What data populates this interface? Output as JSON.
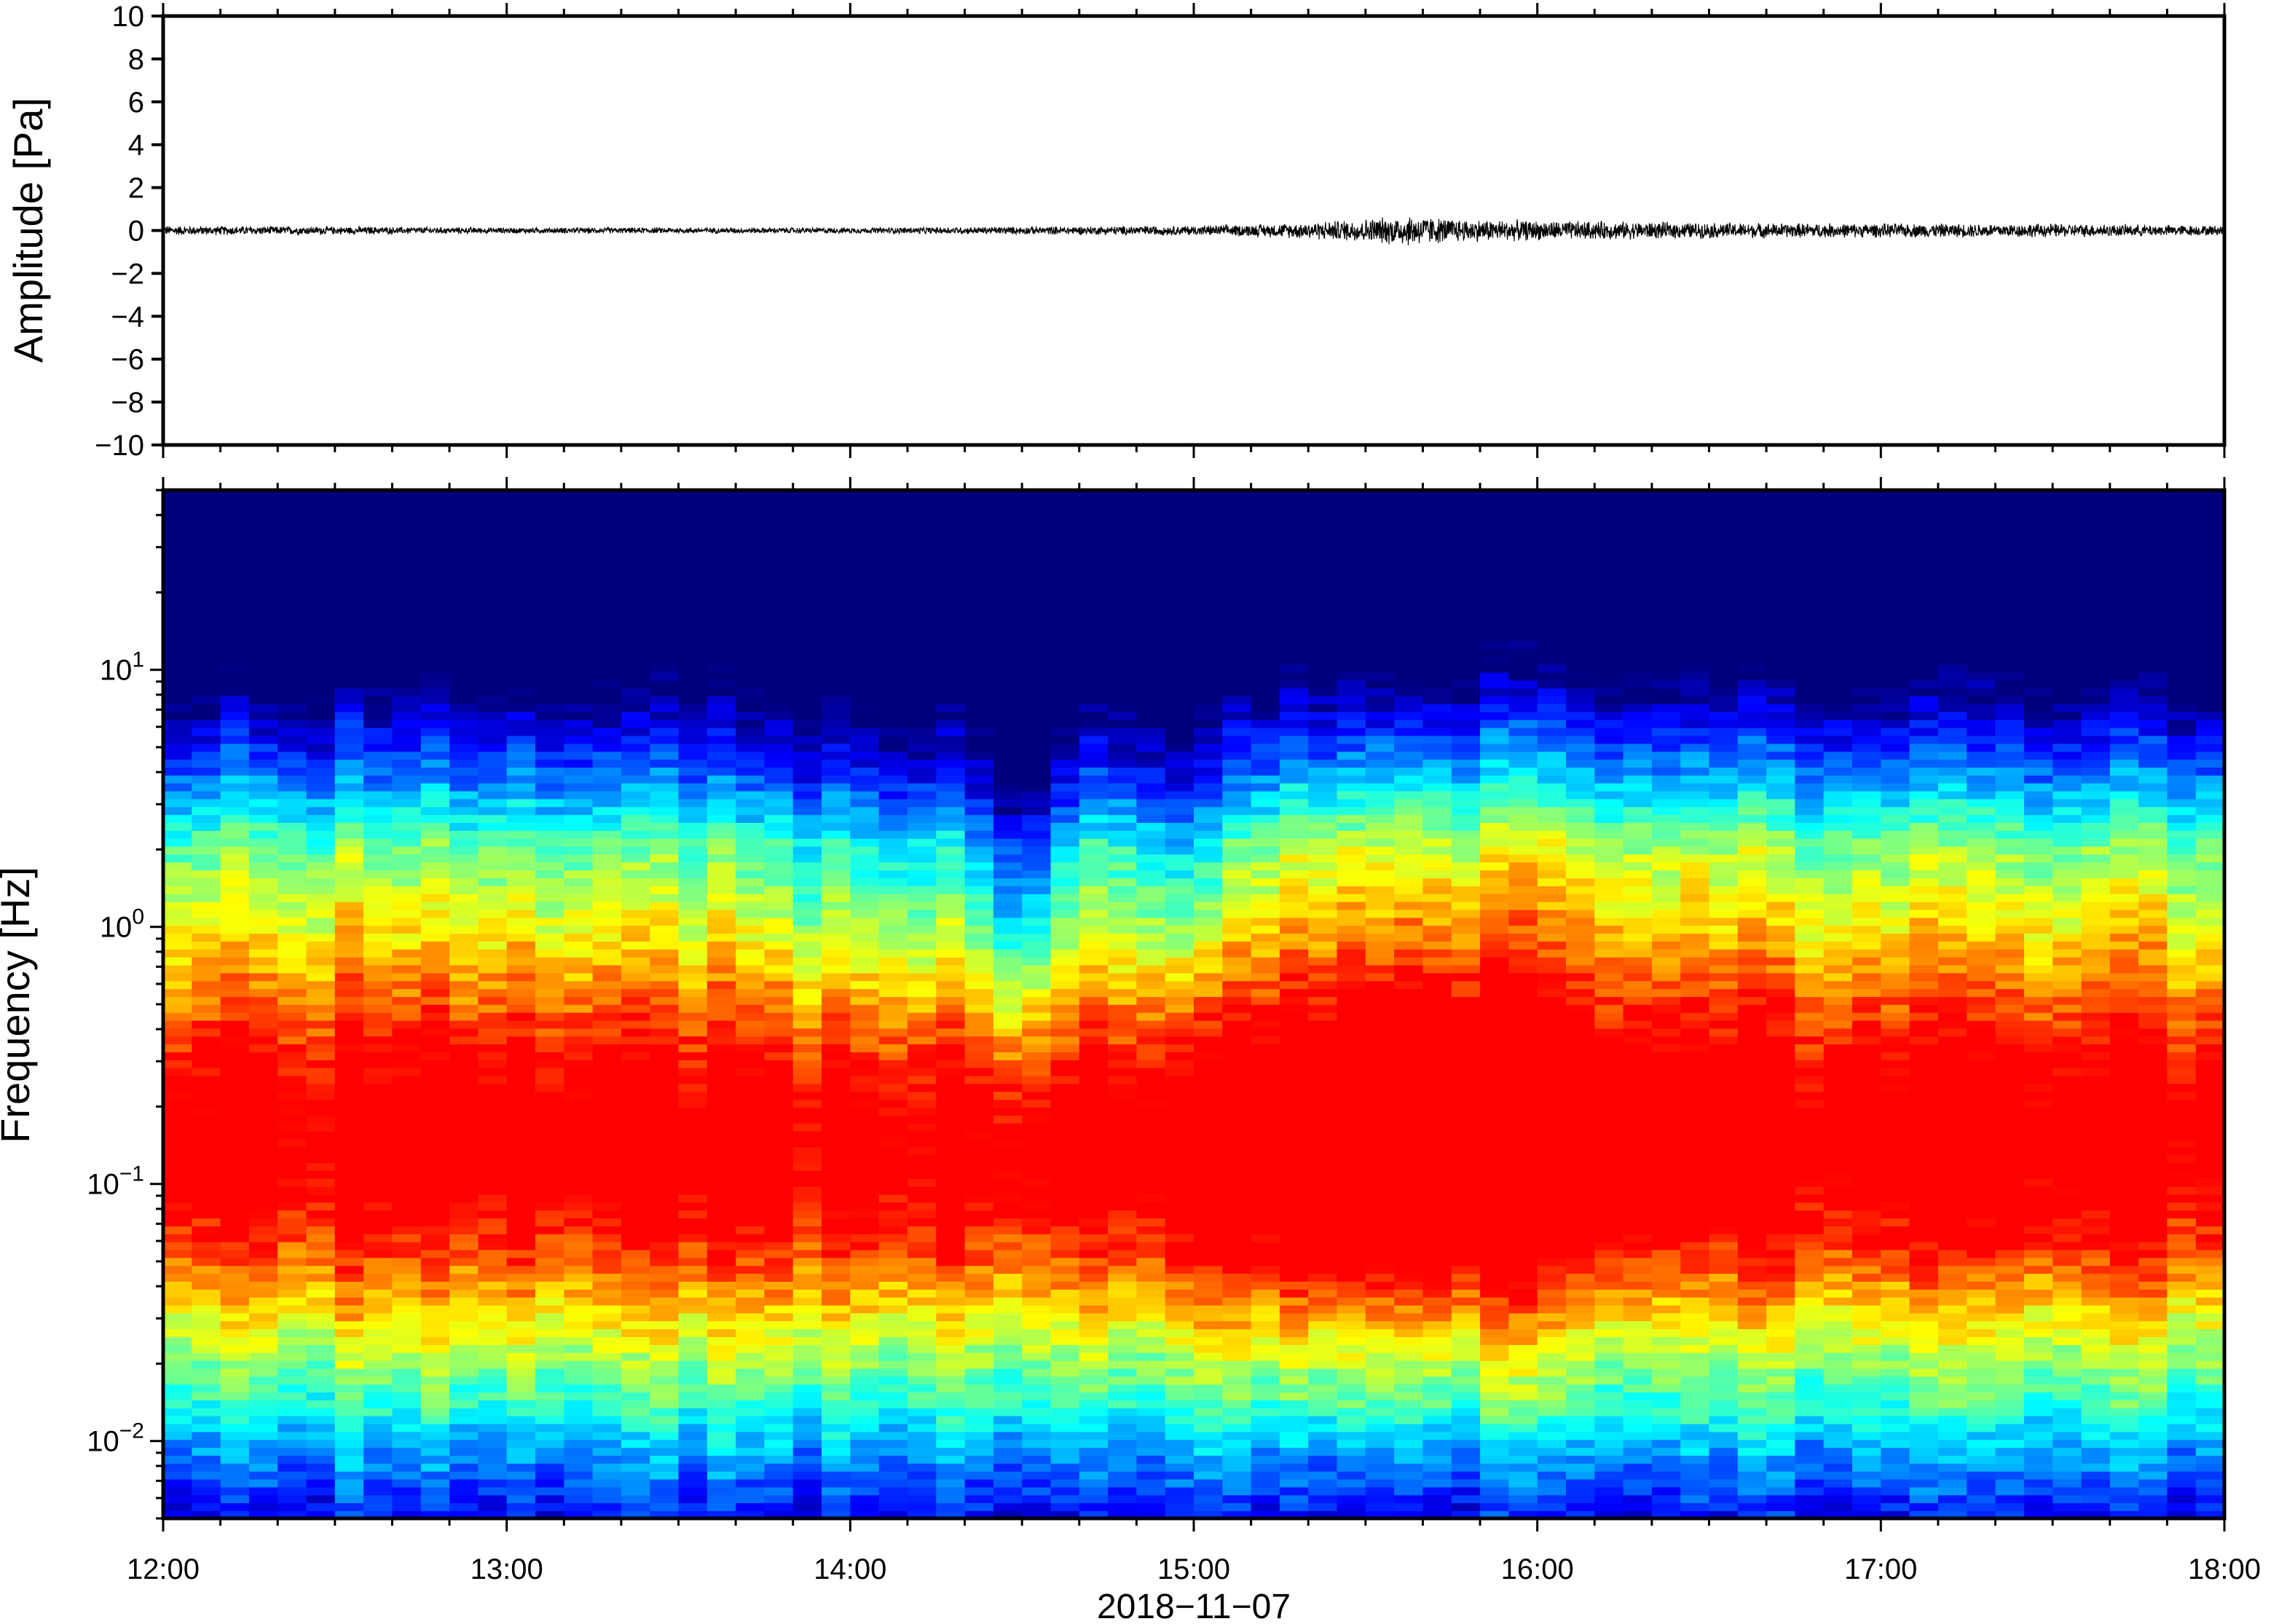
{
  "chart_data": [
    {
      "type": "line",
      "panel": "waveform",
      "ylabel": "Amplitude [Pa]",
      "xlabel": "",
      "x_range": [
        "12:00",
        "18:00"
      ],
      "ylim": [
        -10,
        10
      ],
      "y_ticks": [
        10,
        8,
        6,
        4,
        2,
        0,
        -2,
        -4,
        -6,
        -8,
        -10
      ],
      "y_tick_labels": [
        "10",
        "8",
        "6",
        "4",
        "2",
        "0",
        "−2",
        "−4",
        "−6",
        "−8",
        "−10"
      ],
      "series": [
        {
          "x": [
            "12:00",
            "12:30",
            "13:00",
            "13:30",
            "14:00",
            "14:30",
            "15:00",
            "15:15",
            "15:30",
            "15:38",
            "15:45",
            "16:00",
            "16:30",
            "17:00",
            "17:30",
            "18:00"
          ],
          "envelope_pa": [
            0.25,
            0.2,
            0.15,
            0.15,
            0.15,
            0.2,
            0.25,
            0.35,
            0.6,
            0.8,
            0.6,
            0.5,
            0.4,
            0.35,
            0.35,
            0.25
          ]
        }
      ],
      "grid": false,
      "line_color": "#000000"
    },
    {
      "type": "heatmap",
      "panel": "spectrogram",
      "ylabel": "Frequency [Hz]",
      "xlabel": "2018−11−07",
      "x_ticks": [
        "12:00",
        "13:00",
        "14:00",
        "15:00",
        "16:00",
        "17:00",
        "18:00"
      ],
      "y_scale": "log",
      "ylim": [
        0.005,
        50
      ],
      "y_ticks": [
        0.01,
        0.1,
        1,
        10
      ],
      "y_tick_base": [
        "10",
        "10",
        "10",
        "10"
      ],
      "y_tick_exp": [
        "−2",
        "−1",
        "0",
        "1"
      ],
      "colormap": "jet",
      "colormap_stops": [
        "#00007f",
        "#0000ff",
        "#007fff",
        "#00ffff",
        "#7fff7f",
        "#ffff00",
        "#ff7f00",
        "#ff0000"
      ],
      "grid": false,
      "features": {
        "low_power_dip_times": [
          "14:30",
          "15:00"
        ],
        "high_power_event_time": "15:38",
        "high_power_event_freq_hz": [
          0.04,
          0.3
        ]
      }
    }
  ]
}
